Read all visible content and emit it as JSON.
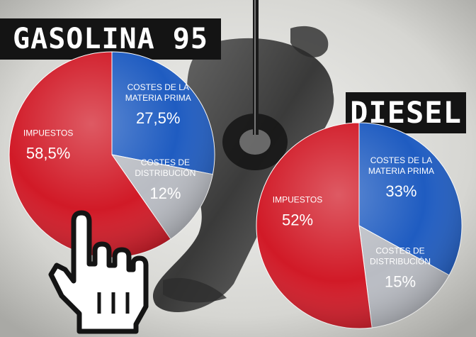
{
  "colors": {
    "tax": "#d11a27",
    "raw": "#1f5cc1",
    "dist": "#b9bcc3",
    "title_bg": "#141414"
  },
  "chart_data": [
    {
      "type": "pie",
      "title": "GASOLINA 95",
      "slices": [
        {
          "key": "tax",
          "label": [
            "IMPUESTOS"
          ],
          "display": "58,5%",
          "value": 58.5,
          "color": "#d11a27"
        },
        {
          "key": "raw",
          "label": [
            "COSTES DE LA",
            "MATERIA PRIMA"
          ],
          "display": "27,5%",
          "value": 27.5,
          "color": "#1f5cc1"
        },
        {
          "key": "dist",
          "label": [
            "COSTES DE",
            "DISTRIBUCIÓN"
          ],
          "display": "12%",
          "value": 12,
          "color": "#b9bcc3"
        }
      ]
    },
    {
      "type": "pie",
      "title": "DIESEL",
      "slices": [
        {
          "key": "tax",
          "label": [
            "IMPUESTOS"
          ],
          "display": "52%",
          "value": 52,
          "color": "#d11a27"
        },
        {
          "key": "raw",
          "label": [
            "COSTES DE LA",
            "MATERIA PRIMA"
          ],
          "display": "33%",
          "value": 33,
          "color": "#1f5cc1"
        },
        {
          "key": "dist",
          "label": [
            "COSTES DE",
            "DISTRIBUCIÓN"
          ],
          "display": "15%",
          "value": 15,
          "color": "#b9bcc3"
        }
      ]
    }
  ]
}
